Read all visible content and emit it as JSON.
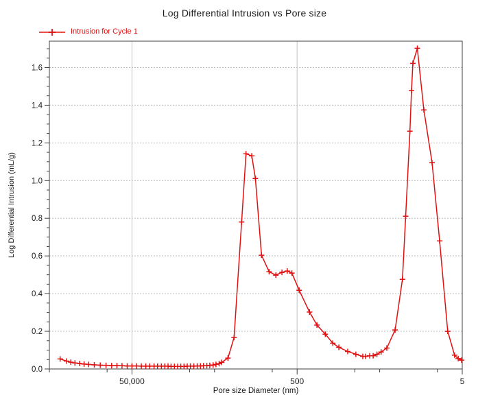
{
  "chart_data": {
    "type": "line",
    "title": "Log Differential Intrusion vs Pore size",
    "xlabel": "Pore size Diameter (nm)",
    "ylabel": "Log Differential Intrusion (mL/g)",
    "legend_position": "top-left",
    "grid": {
      "color_horizontal": "#bcbcbc",
      "color_vertical": "#c2c2c2",
      "vertical_at": [
        50000,
        500
      ]
    },
    "frame_color": "#3f3f3f",
    "tick_color": "#3f3f3f",
    "x_axis": {
      "scale": "log",
      "reversed": true,
      "min": 5,
      "max": 500000,
      "major_ticks": [
        {
          "value": 50000,
          "label": "50,000"
        },
        {
          "value": 500,
          "label": "500"
        },
        {
          "value": 5,
          "label": "5"
        }
      ],
      "minor_ticks": [
        500000,
        100000,
        10000,
        5000,
        1000,
        100,
        50,
        10
      ]
    },
    "y_axis": {
      "min": 0,
      "max": 1.74,
      "minor_step": 0.05,
      "major_ticks": [
        {
          "value": 0.0,
          "label": "0.0"
        },
        {
          "value": 0.2,
          "label": "0.2"
        },
        {
          "value": 0.4,
          "label": "0.4"
        },
        {
          "value": 0.6,
          "label": "0.6"
        },
        {
          "value": 0.8,
          "label": "0.8"
        },
        {
          "value": 1.0,
          "label": "1.0"
        },
        {
          "value": 1.2,
          "label": "1.2"
        },
        {
          "value": 1.4,
          "label": "1.4"
        },
        {
          "value": 1.6,
          "label": "1.6"
        }
      ]
    },
    "series": [
      {
        "name": "Intrusion for Cycle 1",
        "color": "#e01010",
        "marker": "plus",
        "points": [
          [
            370000,
            0.053
          ],
          [
            310000,
            0.042
          ],
          [
            275000,
            0.036
          ],
          [
            245000,
            0.032
          ],
          [
            215000,
            0.029
          ],
          [
            190000,
            0.026
          ],
          [
            167000,
            0.024
          ],
          [
            143000,
            0.022
          ],
          [
            121000,
            0.02
          ],
          [
            103000,
            0.019
          ],
          [
            88000,
            0.018
          ],
          [
            76000,
            0.018
          ],
          [
            66000,
            0.017
          ],
          [
            57000,
            0.016
          ],
          [
            50000,
            0.016
          ],
          [
            44000,
            0.016
          ],
          [
            38500,
            0.015
          ],
          [
            34000,
            0.015
          ],
          [
            30500,
            0.015
          ],
          [
            27000,
            0.015
          ],
          [
            24500,
            0.015
          ],
          [
            22000,
            0.015
          ],
          [
            20000,
            0.015
          ],
          [
            18300,
            0.015
          ],
          [
            16800,
            0.014
          ],
          [
            15300,
            0.014
          ],
          [
            14000,
            0.014
          ],
          [
            12800,
            0.014
          ],
          [
            11700,
            0.014
          ],
          [
            10700,
            0.015
          ],
          [
            9800,
            0.015
          ],
          [
            8900,
            0.015
          ],
          [
            8100,
            0.016
          ],
          [
            7400,
            0.016
          ],
          [
            6800,
            0.017
          ],
          [
            6200,
            0.018
          ],
          [
            5700,
            0.019
          ],
          [
            5200,
            0.021
          ],
          [
            4800,
            0.024
          ],
          [
            4400,
            0.028
          ],
          [
            4100,
            0.035
          ],
          [
            3440,
            0.058
          ],
          [
            2900,
            0.167
          ],
          [
            2350,
            0.78
          ],
          [
            2080,
            1.142
          ],
          [
            1770,
            1.131
          ],
          [
            1600,
            1.011
          ],
          [
            1350,
            0.604
          ],
          [
            1090,
            0.516
          ],
          [
            904,
            0.498
          ],
          [
            763,
            0.513
          ],
          [
            658,
            0.52
          ],
          [
            578,
            0.509
          ],
          [
            472,
            0.418
          ],
          [
            354,
            0.302
          ],
          [
            287,
            0.233
          ],
          [
            228,
            0.185
          ],
          [
            185,
            0.137
          ],
          [
            156,
            0.115
          ],
          [
            122,
            0.093
          ],
          [
            97,
            0.078
          ],
          [
            80,
            0.067
          ],
          [
            74,
            0.067
          ],
          [
            66,
            0.07
          ],
          [
            60,
            0.07
          ],
          [
            54,
            0.078
          ],
          [
            48,
            0.09
          ],
          [
            41,
            0.111
          ],
          [
            32.5,
            0.207
          ],
          [
            26.5,
            0.476
          ],
          [
            24.2,
            0.811
          ],
          [
            21.5,
            1.262
          ],
          [
            20.6,
            1.477
          ],
          [
            19.8,
            1.622
          ],
          [
            17.5,
            1.702
          ],
          [
            14.6,
            1.375
          ],
          [
            11.6,
            1.095
          ],
          [
            9.4,
            0.68
          ],
          [
            7.5,
            0.2
          ],
          [
            6.2,
            0.073
          ],
          [
            5.6,
            0.055
          ],
          [
            5.1,
            0.047
          ]
        ]
      }
    ]
  }
}
